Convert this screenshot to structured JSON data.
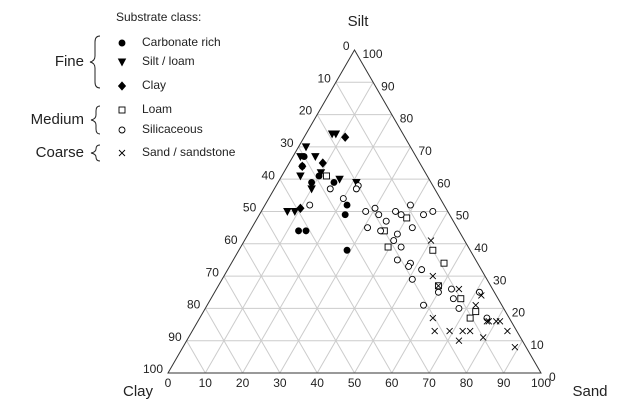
{
  "chart_data": {
    "type": "ternary",
    "legend_title": "Substrate class:",
    "groups": [
      "Fine",
      "Medium",
      "Coarse"
    ],
    "axes": {
      "silt": "Silt",
      "clay": "Clay",
      "sand": "Sand"
    },
    "ticks": [
      0,
      10,
      20,
      30,
      40,
      50,
      60,
      70,
      80,
      90,
      100
    ],
    "grid": true,
    "series": [
      {
        "name": "Carbonate rich",
        "marker": "circle",
        "filled": true,
        "color": "#000000",
        "sand": [
          4,
          9,
          10,
          15,
          22,
          23,
          29,
          13,
          15,
          3
        ],
        "silt": [
          64,
          59,
          61,
          59,
          52,
          49,
          38,
          44,
          44,
          67
        ]
      },
      {
        "name": "Silt / loam",
        "marker": "triangle-down",
        "filled": true,
        "color": "#000000",
        "sand": [
          7,
          8,
          2,
          6,
          2,
          5,
          10,
          7,
          16,
          21,
          10,
          9
        ],
        "silt": [
          74,
          74,
          70,
          67,
          67,
          61,
          57,
          50,
          60,
          59,
          62,
          50
        ]
      },
      {
        "name": "Clay",
        "marker": "diamond",
        "filled": true,
        "color": "#000000",
        "sand": [
          11,
          10,
          4,
          9
        ],
        "silt": [
          73,
          51,
          64,
          65
        ]
      },
      {
        "name": "Loam",
        "marker": "square",
        "filled": false,
        "color": "#000000",
        "sand": [
          12,
          39.5,
          36,
          52,
          72.5,
          73,
          67,
          59,
          40,
          57
        ],
        "silt": [
          61,
          39,
          44,
          38,
          17,
          19,
          23,
          27,
          48,
          34
        ]
      },
      {
        "name": "Silicaceous",
        "marker": "circle",
        "filled": false,
        "color": "#000000",
        "sand": [
          12,
          22,
          22,
          28,
          30,
          32,
          35,
          36,
          38,
          39,
          44,
          43,
          40,
          40,
          43,
          48,
          52,
          51,
          58,
          60,
          63,
          68,
          77,
          71,
          31,
          35,
          46,
          15,
          20,
          44,
          48,
          65
        ],
        "silt": [
          52,
          58,
          57,
          50,
          51,
          49,
          47,
          50,
          49,
          52,
          49,
          45,
          43,
          41,
          39,
          34,
          32,
          29,
          21,
          25,
          26,
          20,
          17,
          25,
          45,
          44,
          50,
          57,
          54,
          35,
          33,
          23
        ]
      },
      {
        "name": "Sand / sandstone",
        "marker": "x",
        "filled": false,
        "color": "#000000",
        "sand": [
          50,
          56,
          59,
          65,
          72,
          72,
          62.5,
          65,
          69,
          72.5,
          74.5,
          73,
          79,
          81,
          84.5,
          89,
          77.5,
          78,
          80
        ],
        "silt": [
          41,
          30,
          27,
          26,
          24,
          21,
          17,
          13,
          13,
          13,
          13,
          10,
          11,
          16,
          13,
          8,
          16,
          16,
          16
        ]
      }
    ]
  }
}
